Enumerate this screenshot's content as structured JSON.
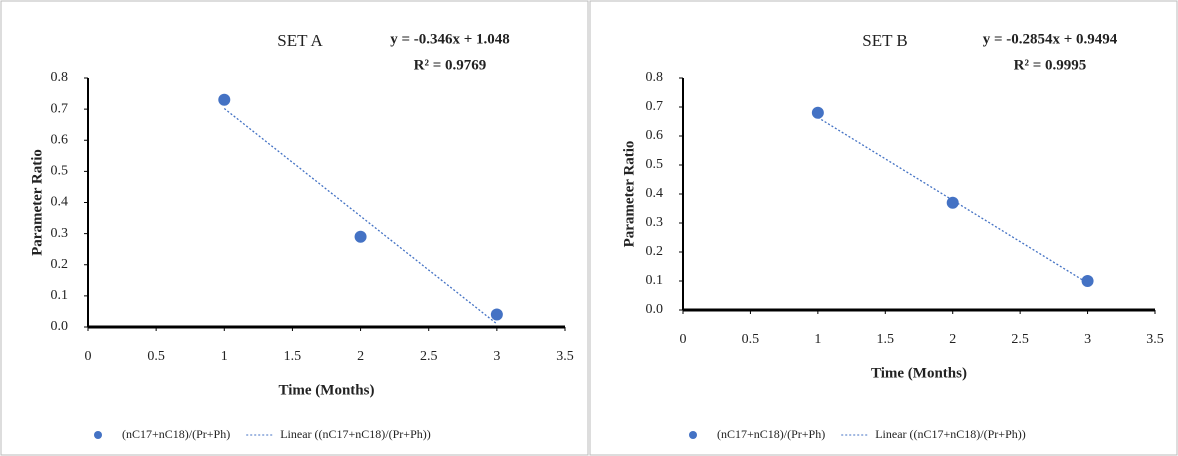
{
  "chart_data": [
    {
      "type": "scatter",
      "title": "SET A",
      "equation": "y = -0.346x + 1.048",
      "r_squared": "R² = 0.9769",
      "xlabel": "Time (Months)",
      "ylabel": "Parameter Ratio",
      "series": [
        {
          "name": "(nC17+nC18)/(Pr+Ph)",
          "color": "#4472c4",
          "x": [
            1,
            2,
            3
          ],
          "values": [
            0.73,
            0.29,
            0.04
          ]
        },
        {
          "name": "Linear ((nC17+nC18)/(Pr+Ph))",
          "color": "#4472c4",
          "line": "dotted",
          "x": [
            1,
            3
          ],
          "values": [
            0.702,
            0.01
          ]
        }
      ],
      "xlim": [
        0,
        3.5
      ],
      "xticks": [
        0,
        0.5,
        1,
        1.5,
        2,
        2.5,
        3,
        3.5
      ],
      "ylim": [
        0,
        0.8
      ],
      "yticks": [
        {
          "value": 0,
          "label": "0.0"
        },
        0.1,
        0.2,
        0.3,
        0.4,
        0.5,
        0.6,
        0.7,
        0.8
      ],
      "legend": "bottom"
    },
    {
      "type": "scatter",
      "title": "SET B",
      "equation": "y = -0.2854x + 0.9494",
      "r_squared": "R² = 0.9995",
      "xlabel": "Time (Months)",
      "ylabel": "Parameter Ratio",
      "series": [
        {
          "name": "(nC17+nC18)/(Pr+Ph)",
          "color": "#4472c4",
          "x": [
            1,
            2,
            3
          ],
          "values": [
            0.68,
            0.37,
            0.1
          ]
        },
        {
          "name": "Linear ((nC17+nC18)/(Pr+Ph))",
          "color": "#4472c4",
          "line": "dotted",
          "x": [
            1,
            3
          ],
          "values": [
            0.664,
            0.093
          ]
        }
      ],
      "xlim": [
        0,
        3.5
      ],
      "xticks": [
        0,
        0.5,
        1,
        1.5,
        2,
        2.5,
        3,
        3.5
      ],
      "ylim": [
        0,
        0.8
      ],
      "yticks": [
        {
          "value": 0,
          "label": "0.0"
        },
        0.1,
        0.2,
        0.3,
        0.4,
        0.5,
        0.6,
        0.7,
        0.8
      ],
      "legend": "bottom"
    }
  ]
}
